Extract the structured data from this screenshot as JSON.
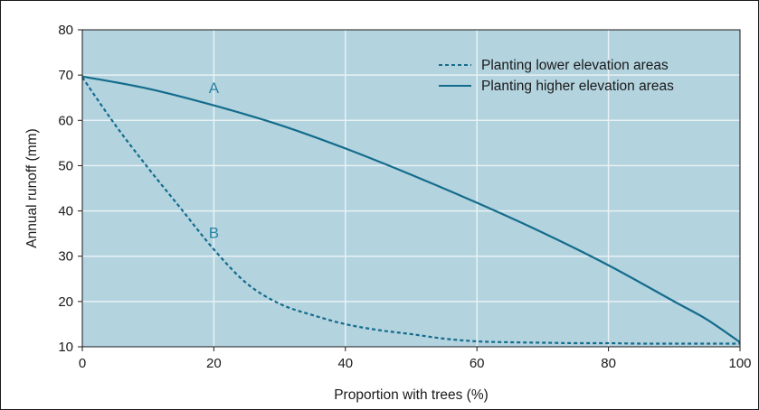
{
  "chart_data": {
    "type": "line",
    "title": "",
    "xlabel": "Proportion with trees (%)",
    "ylabel": "Annual runoff (mm)",
    "xlim": [
      0,
      100
    ],
    "ylim": [
      10,
      80
    ],
    "xticks": [
      0,
      20,
      40,
      60,
      80,
      100
    ],
    "yticks": [
      10,
      20,
      30,
      40,
      50,
      60,
      70,
      80
    ],
    "grid": true,
    "legend_position": "top-right",
    "colors": {
      "plot_background": "#b3d3df",
      "series_line": "#146c8c",
      "grid": "#e9f2f5",
      "label_text": "#2a84a4"
    },
    "series": [
      {
        "name": "Planting lower elevation areas",
        "line_style": "dashed",
        "label": "B",
        "label_at": [
          20,
          34
        ],
        "x": [
          0,
          5,
          10,
          15,
          20,
          25,
          30,
          35,
          40,
          45,
          50,
          55,
          60,
          65,
          70,
          75,
          80,
          85,
          90,
          95,
          100
        ],
        "y": [
          69.5,
          59,
          49.5,
          40.5,
          31.5,
          24,
          19.5,
          17,
          15,
          13.7,
          12.8,
          11.8,
          11.2,
          11,
          10.9,
          10.8,
          10.8,
          10.7,
          10.7,
          10.7,
          10.7
        ]
      },
      {
        "name": "Planting higher elevation areas",
        "line_style": "solid",
        "label": "A",
        "label_at": [
          20,
          66
        ],
        "x": [
          0,
          10,
          20,
          30,
          40,
          50,
          60,
          70,
          80,
          90,
          95,
          100
        ],
        "y": [
          69.7,
          67,
          63.3,
          59,
          53.8,
          48,
          41.8,
          35.2,
          28,
          20,
          16,
          11
        ]
      }
    ]
  }
}
